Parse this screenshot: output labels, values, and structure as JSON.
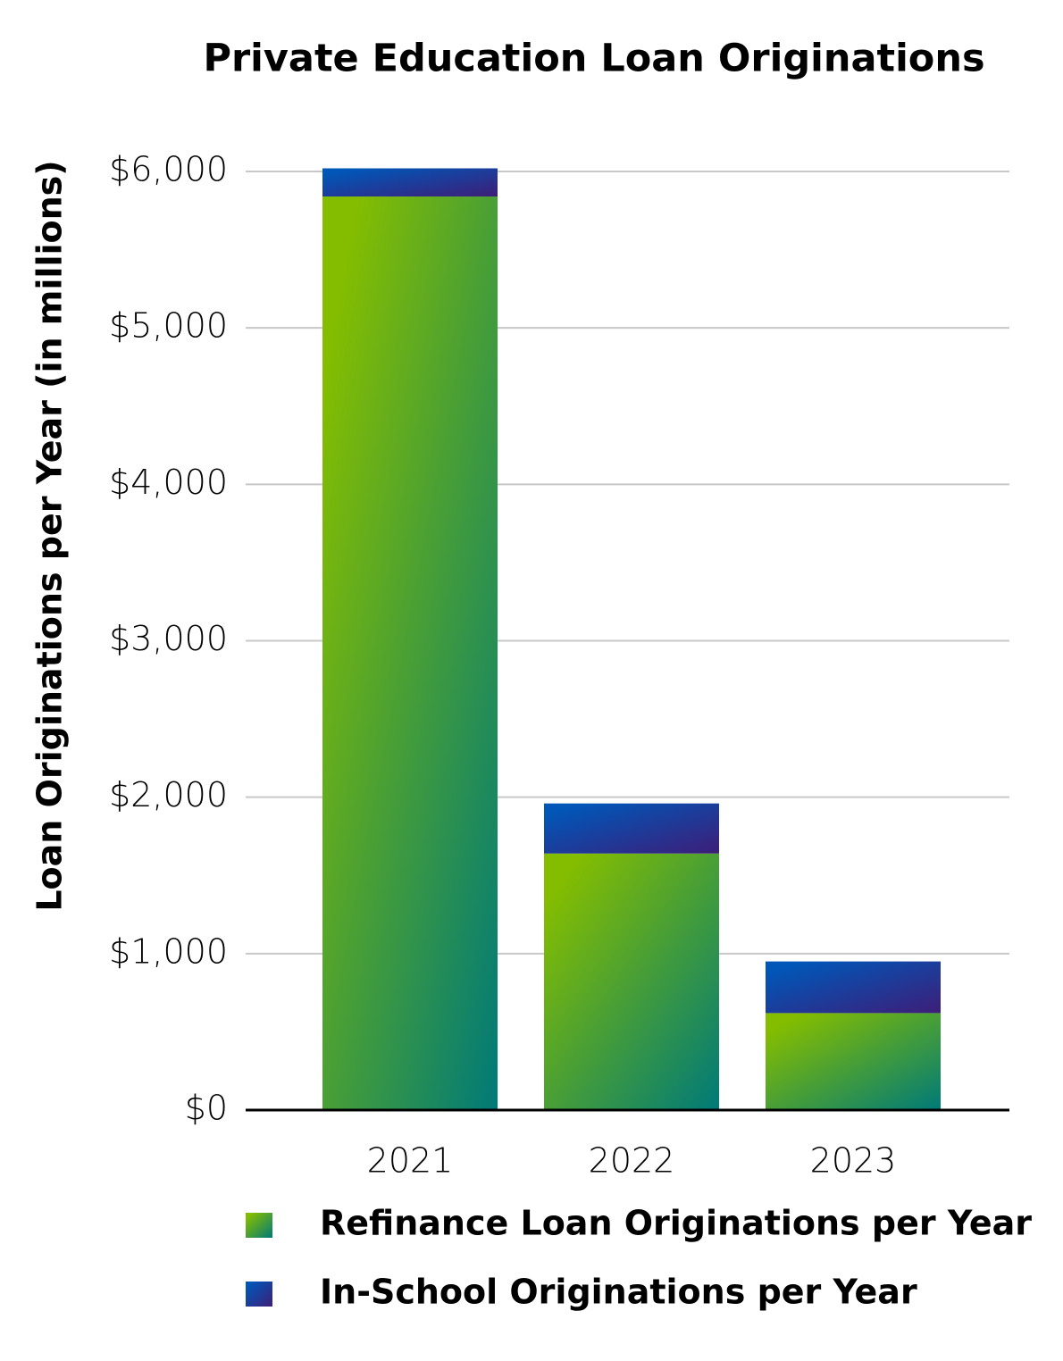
{
  "chart_data": {
    "type": "stacked_bar",
    "title": "Private Education Loan Originations",
    "y_label": "Loan Originations per Year (in millions)",
    "categories": [
      "2021",
      "2022",
      "2023"
    ],
    "series": [
      {
        "name": "Refinance Loan Originations per Year",
        "color": "#84bd00",
        "color_end": "#007a78",
        "values": [
          5840,
          1640,
          620
        ]
      },
      {
        "name": "In-School Originations per Year",
        "color": "#0057b8",
        "color_end": "#3d1e78",
        "values": [
          180,
          320,
          330
        ]
      }
    ],
    "ylim": [
      0,
      6000
    ],
    "yticks": [
      {
        "value": 0,
        "label": "$0"
      },
      {
        "value": 1000,
        "label": "$1,000"
      },
      {
        "value": 2000,
        "label": "$2,000"
      },
      {
        "value": 3000,
        "label": "$3,000"
      },
      {
        "value": 4000,
        "label": "$4,000"
      },
      {
        "value": 5000,
        "label": "$5,000"
      },
      {
        "value": 6000,
        "label": "$6,000"
      }
    ],
    "grid": true
  }
}
